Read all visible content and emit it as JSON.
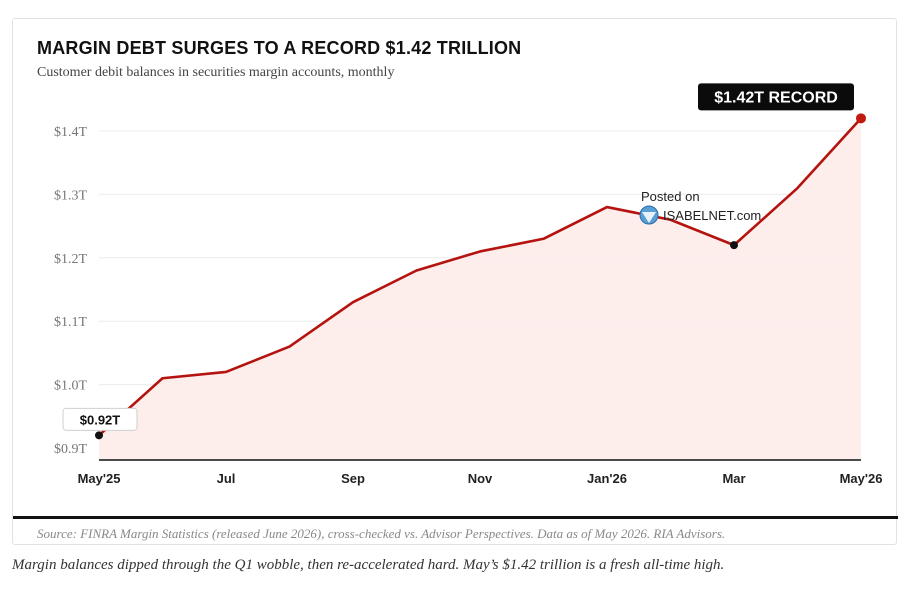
{
  "header": {
    "title": "MARGIN DEBT SURGES TO A RECORD $1.42 TRILLION",
    "subtitle": "Customer debit balances in securities margin accounts, monthly"
  },
  "footer": {
    "source": "Source: FINRA Margin Statistics (released June 2026), cross-checked vs. Advisor Perspectives. Data as of May 2026. RIA Advisors.",
    "caption": "Margin balances dipped through the Q1 wobble, then re-accelerated hard. May’s $1.42 trillion is a fresh all-time high."
  },
  "watermark": {
    "line1": "Posted on",
    "line2": "ISABELNET.com"
  },
  "colors": {
    "line": "#b5130f",
    "area": "#fdecea",
    "end_point": "#c0190f",
    "point": "#111111"
  },
  "chart_data": {
    "type": "line",
    "title": "MARGIN DEBT SURGES TO A RECORD $1.42 TRILLION",
    "subtitle": "Customer debit balances in securities margin accounts, monthly",
    "xlabel": "",
    "ylabel": "",
    "categories": [
      "May'25",
      "Jun",
      "Jul",
      "Aug",
      "Sep",
      "Oct",
      "Nov",
      "Dec",
      "Jan'26",
      "Feb",
      "Mar",
      "Apr",
      "May'26"
    ],
    "x_tick_labels": [
      "May'25",
      "Jul",
      "Sep",
      "Nov",
      "Jan'26",
      "Mar",
      "May'26"
    ],
    "series": [
      {
        "values": [
          0.92,
          1.01,
          1.02,
          1.06,
          1.13,
          1.18,
          1.21,
          1.23,
          1.28,
          1.26,
          1.22,
          1.31,
          1.42
        ]
      }
    ],
    "y_ticks": [
      0.9,
      1.0,
      1.1,
      1.2,
      1.3,
      1.4
    ],
    "y_tick_labels": [
      "$0.9T",
      "$1.0T",
      "$1.1T",
      "$1.2T",
      "$1.3T",
      "$1.4T"
    ],
    "ylim": [
      0.9,
      1.4
    ],
    "grid": true,
    "area_fill": true,
    "annotations": [
      {
        "label": "$0.92T",
        "category": "May'25",
        "value": 0.92,
        "style": "box-light"
      },
      {
        "label": "$1.42T RECORD",
        "category": "May'26",
        "value": 1.42,
        "style": "box-dark"
      }
    ]
  }
}
